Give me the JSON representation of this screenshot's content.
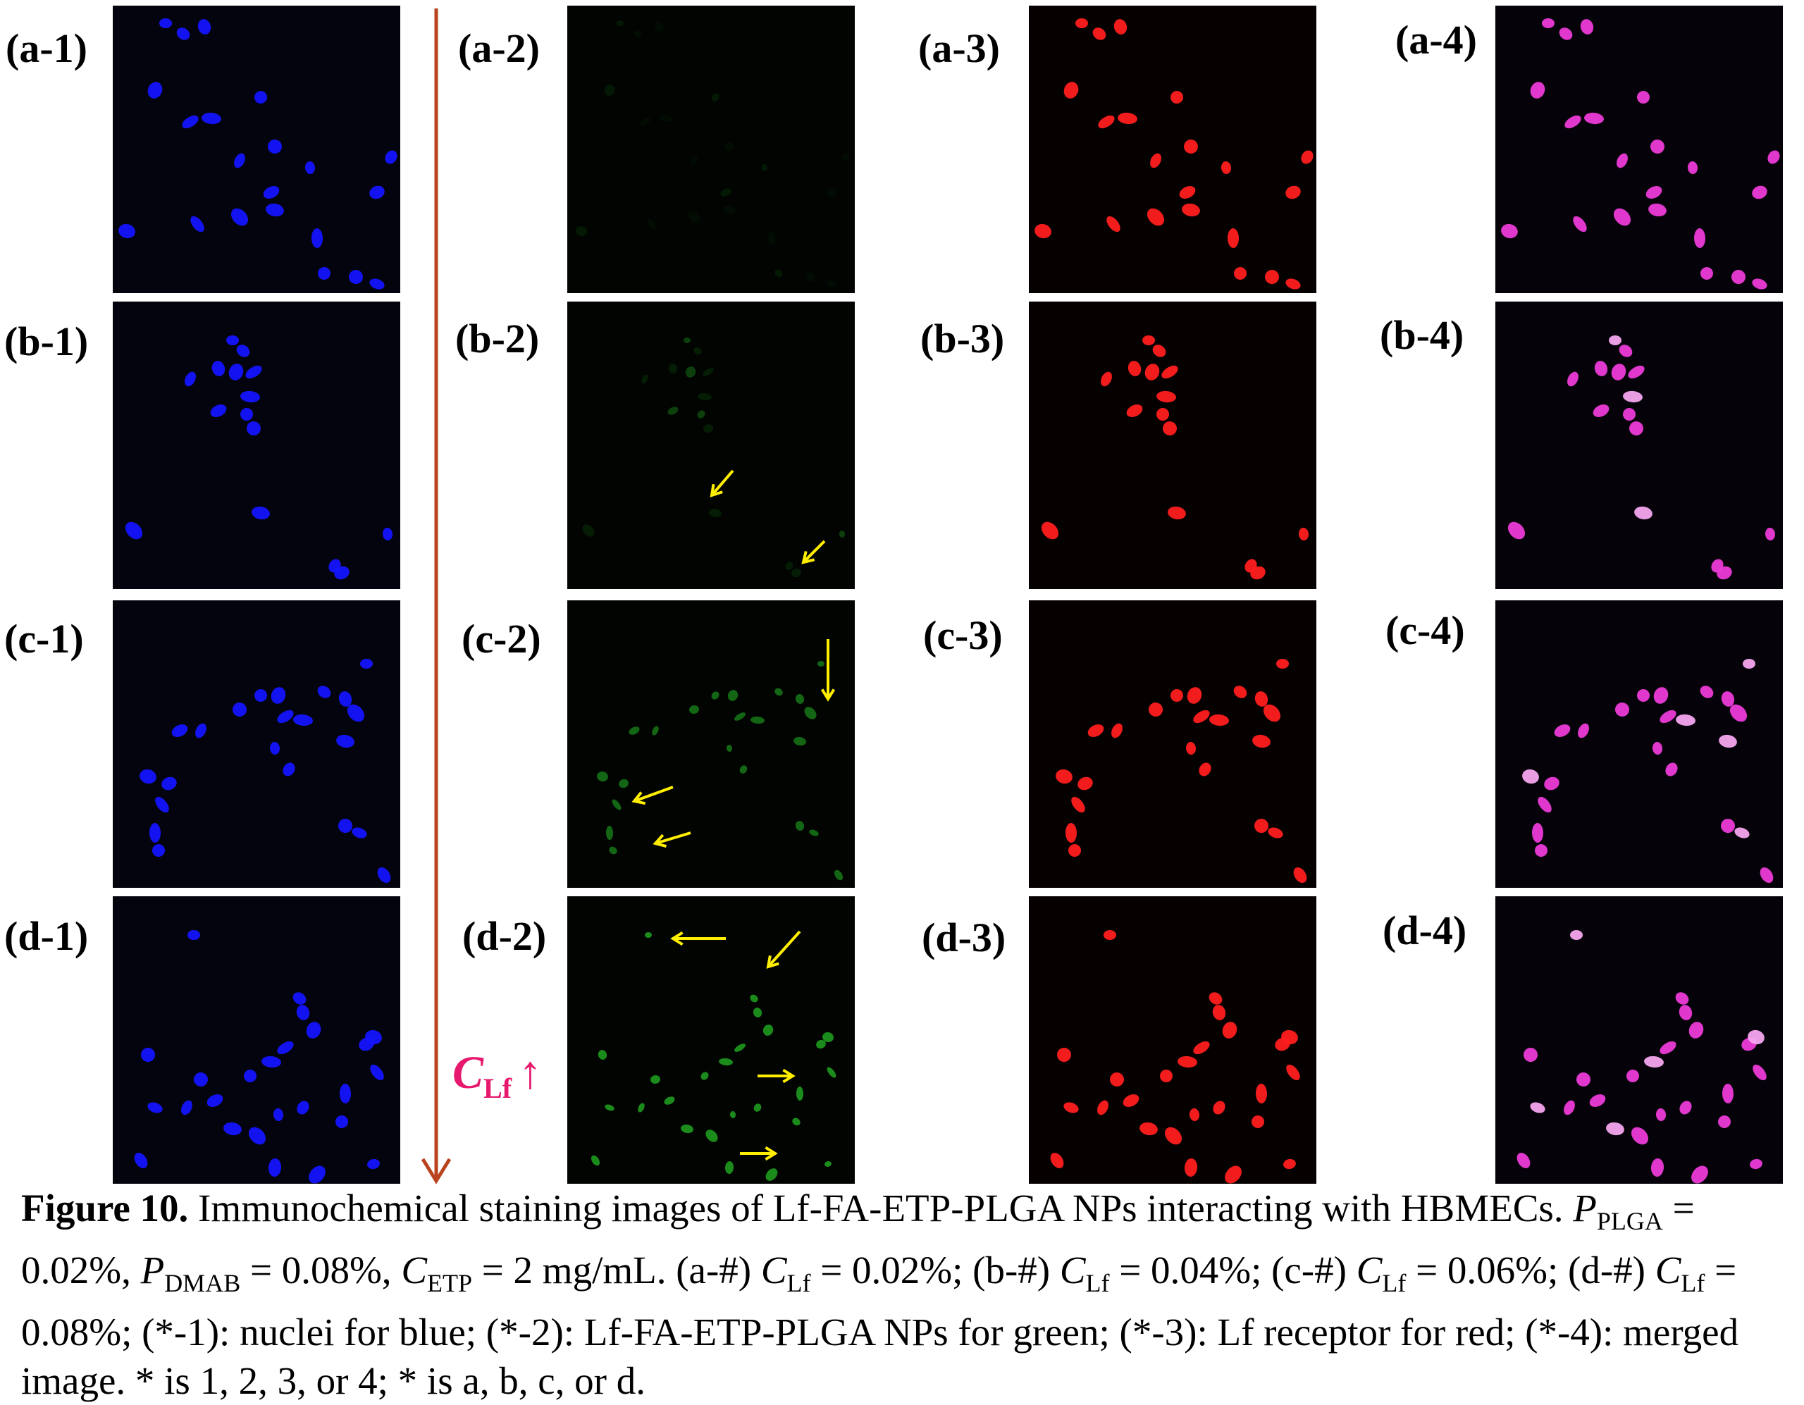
{
  "figure": {
    "rows": [
      {
        "id": "a",
        "labels": [
          "(a-1)",
          "(a-2)",
          "(a-3)",
          "(a-4)"
        ]
      },
      {
        "id": "b",
        "labels": [
          "(b-1)",
          "(b-2)",
          "(b-3)",
          "(b-4)"
        ]
      },
      {
        "id": "c",
        "labels": [
          "(c-1)",
          "(c-2)",
          "(c-3)",
          "(c-4)"
        ]
      },
      {
        "id": "d",
        "labels": [
          "(d-1)",
          "(d-2)",
          "(d-3)",
          "(d-4)"
        ]
      }
    ],
    "channels": [
      {
        "name": "blue",
        "color": "#1414ff"
      },
      {
        "name": "green",
        "color": "#22b422"
      },
      {
        "name": "red",
        "color": "#ff1e1e"
      },
      {
        "name": "merged",
        "color": "#ec3ad8"
      }
    ],
    "annotation_arrow_color": "#ffee00",
    "trend": {
      "variable": "C",
      "subscript": "Lf",
      "symbol": "↑",
      "color": "#e6196e",
      "arrow_color": "#b8431e"
    }
  },
  "caption": {
    "label": "Figure 10.",
    "t1": " Immunochemical staining images of Lf-FA-ETP-PLGA NPs interacting with HBMECs. ",
    "v_p": "P",
    "sub_plga": "PLGA",
    "t2": " = 0.02%, ",
    "sub_dmab": "DMAB",
    "t3": " = 0.08%, ",
    "v_c": "C",
    "sub_etp": "ETP",
    "t4": " = 2 mg/mL. (a-#) ",
    "sub_lf": "Lf",
    "t5": " = 0.02%; (b-#) ",
    "t6": " = 0.04%; (c-#) ",
    "t7": " = 0.06%; (d-#) ",
    "t8": " = 0.08%; (*-1): nuclei for blue; (*-2): Lf-FA-ETP-PLGA NPs for green; (*-3): Lf receptor for red; (*-4): merged image. * is 1, 2, 3, or 4; * is a, b, c, or d."
  }
}
